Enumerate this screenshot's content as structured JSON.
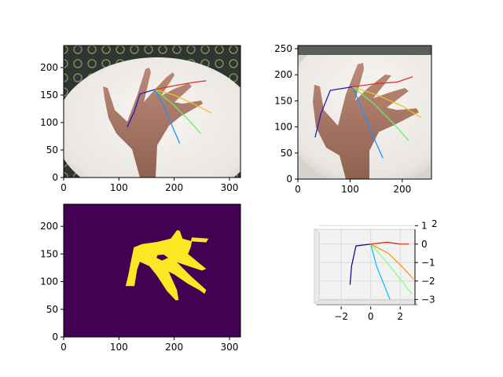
{
  "figure": {
    "background": "#ffffff"
  },
  "chart_data": [
    {
      "type": "image",
      "panel": "rgb-input-with-skeleton",
      "xlim": [
        0,
        320
      ],
      "ylim": [
        240,
        0
      ],
      "xticks": [
        "0",
        "100",
        "200",
        "300"
      ],
      "yticks": [
        "0",
        "50",
        "100",
        "150",
        "200"
      ],
      "xtick_values": [
        0,
        100,
        200,
        300
      ],
      "ytick_values": [
        0,
        50,
        100,
        150,
        200
      ],
      "skeleton": {
        "wrist": [
          165,
          160
        ],
        "fingers": [
          {
            "color": "#2020b0",
            "points": [
              [
                165,
                160
              ],
              [
                138,
                152
              ],
              [
                128,
                120
              ],
              [
                115,
                92
              ]
            ]
          },
          {
            "color": "#1e90ff",
            "points": [
              [
                165,
                160
              ],
              [
                183,
                127
              ],
              [
                198,
                90
              ],
              [
                210,
                62
              ]
            ]
          },
          {
            "color": "#66ee66",
            "points": [
              [
                165,
                160
              ],
              [
                198,
                133
              ],
              [
                225,
                106
              ],
              [
                248,
                80
              ]
            ]
          },
          {
            "color": "#f0c020",
            "points": [
              [
                165,
                160
              ],
              [
                200,
                150
              ],
              [
                235,
                134
              ],
              [
                268,
                117
              ]
            ]
          },
          {
            "color": "#e03020",
            "points": [
              [
                165,
                160
              ],
              [
                200,
                167
              ],
              [
                235,
                173
              ],
              [
                258,
                176
              ]
            ]
          }
        ]
      }
    },
    {
      "type": "image",
      "panel": "cropped-hand-with-skeleton",
      "xlim": [
        0,
        256
      ],
      "ylim": [
        256,
        0
      ],
      "xticks": [
        "0",
        "100",
        "200"
      ],
      "yticks": [
        "0",
        "50",
        "100",
        "150",
        "200",
        "250"
      ],
      "xtick_values": [
        0,
        100,
        200
      ],
      "ytick_values": [
        0,
        50,
        100,
        150,
        200,
        250
      ],
      "skeleton": {
        "fingers": [
          {
            "color": "#2020b0",
            "points": [
              [
                105,
                177
              ],
              [
                62,
                170
              ],
              [
                44,
                125
              ],
              [
                33,
                80
              ]
            ]
          },
          {
            "color": "#1e90ff",
            "points": [
              [
                105,
                177
              ],
              [
                125,
                128
              ],
              [
                145,
                80
              ],
              [
                163,
                40
              ]
            ]
          },
          {
            "color": "#66ee66",
            "points": [
              [
                105,
                177
              ],
              [
                145,
                145
              ],
              [
                180,
                110
              ],
              [
                212,
                74
              ]
            ]
          },
          {
            "color": "#f0c020",
            "points": [
              [
                105,
                177
              ],
              [
                155,
                160
              ],
              [
                200,
                140
              ],
              [
                236,
                118
              ]
            ]
          },
          {
            "color": "#e03020",
            "points": [
              [
                105,
                177
              ],
              [
                150,
                183
              ],
              [
                190,
                186
              ],
              [
                220,
                196
              ]
            ]
          }
        ]
      }
    },
    {
      "type": "heatmap",
      "panel": "segmentation-mask",
      "xlim": [
        0,
        320
      ],
      "ylim": [
        240,
        0
      ],
      "xticks": [
        "0",
        "100",
        "200",
        "300"
      ],
      "yticks": [
        "0",
        "50",
        "100",
        "150",
        "200"
      ],
      "xtick_values": [
        0,
        100,
        200,
        300
      ],
      "ytick_values": [
        0,
        50,
        100,
        150,
        200
      ],
      "background_color": "#440154",
      "mask_color": "#fde725",
      "mask_polygons": [
        [
          [
            112,
            92
          ],
          [
            128,
            92
          ],
          [
            133,
            122
          ],
          [
            138,
            136
          ],
          [
            155,
            128
          ],
          [
            168,
            112
          ],
          [
            187,
            83
          ],
          [
            203,
            66
          ],
          [
            208,
            67
          ],
          [
            205,
            85
          ],
          [
            190,
            118
          ],
          [
            200,
            113
          ],
          [
            225,
            96
          ],
          [
            245,
            85
          ],
          [
            255,
            78
          ],
          [
            258,
            85
          ],
          [
            230,
            110
          ],
          [
            205,
            135
          ],
          [
            220,
            130
          ],
          [
            250,
            120
          ],
          [
            258,
            123
          ],
          [
            225,
            150
          ],
          [
            230,
            162
          ],
          [
            232,
            173
          ],
          [
            215,
            178
          ],
          [
            210,
            192
          ],
          [
            205,
            193
          ],
          [
            194,
            178
          ],
          [
            170,
            172
          ],
          [
            157,
            170
          ],
          [
            142,
            168
          ],
          [
            127,
            162
          ],
          [
            122,
            138
          ],
          [
            117,
            112
          ]
        ],
        [
          [
            230,
            173
          ],
          [
            258,
            171
          ],
          [
            262,
            178
          ],
          [
            232,
            180
          ]
        ]
      ],
      "mask_holes": [
        [
          [
            168,
            143
          ],
          [
            178,
            138
          ],
          [
            189,
            143
          ],
          [
            181,
            149
          ],
          [
            170,
            148
          ]
        ]
      ]
    },
    {
      "type": "line",
      "panel": "3d-pose",
      "xlim": [
        -3.5,
        3
      ],
      "ylim": [
        0.8,
        -3.2
      ],
      "xticks": [
        "−2",
        "0",
        "2"
      ],
      "yticks": [
        "−3",
        "−2",
        "−1",
        "0",
        "1"
      ],
      "xtick_values": [
        -2,
        0,
        2
      ],
      "ytick_values": [
        -3,
        -2,
        -1,
        0,
        1
      ],
      "z_tick_fragment": "2",
      "series": [
        {
          "color": "#000080",
          "x": [
            0,
            -1.0,
            -1.3,
            -1.4
          ],
          "y": [
            0,
            -0.1,
            -1.2,
            -2.2
          ]
        },
        {
          "color": "#00bfff",
          "x": [
            0,
            0.4,
            0.9,
            1.3
          ],
          "y": [
            0,
            -1.2,
            -2.2,
            -3.0
          ]
        },
        {
          "color": "#80ff80",
          "x": [
            0,
            0.9,
            1.9,
            2.8
          ],
          "y": [
            0,
            -0.8,
            -1.8,
            -2.7
          ]
        },
        {
          "color": "#ff8c00",
          "x": [
            0,
            1.2,
            2.1,
            2.9
          ],
          "y": [
            0,
            -0.5,
            -1.2,
            -1.9
          ]
        },
        {
          "color": "#e02000",
          "x": [
            0,
            1.1,
            2.0,
            2.6
          ],
          "y": [
            0,
            0.1,
            0.0,
            0.0
          ]
        }
      ]
    }
  ]
}
